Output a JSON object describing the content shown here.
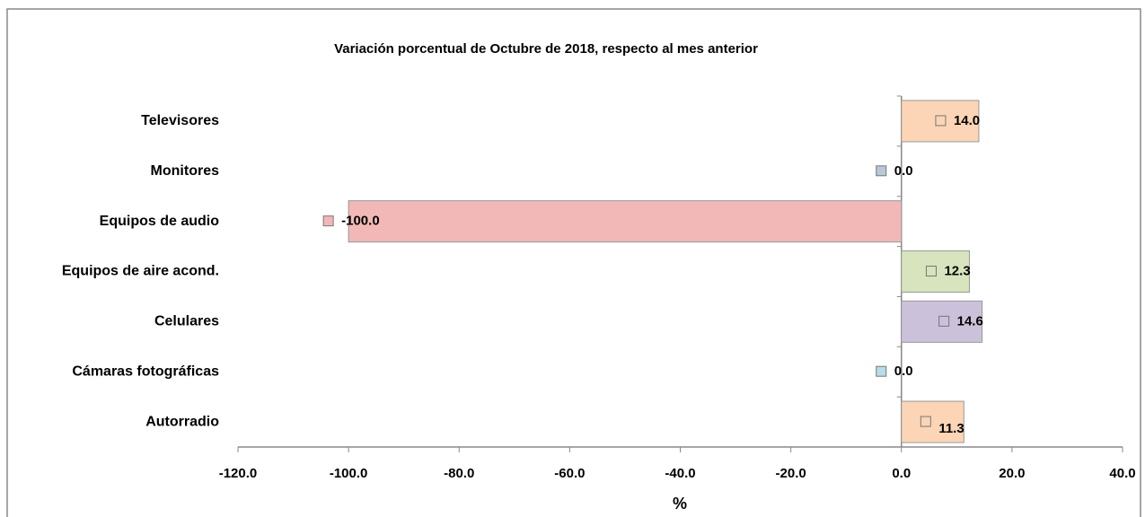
{
  "chart_data": {
    "type": "bar",
    "orientation": "horizontal",
    "title": "Variación porcentual de Octubre de 2018, respecto al mes anterior",
    "x_label": "%",
    "categories": [
      "Televisores",
      "Monitores",
      "Equipos de audio",
      "Equipos de aire acond.",
      "Celulares",
      "Cámaras fotográficas",
      "Autorradio"
    ],
    "values": [
      14.0,
      0.0,
      -100.0,
      12.3,
      14.6,
      0.0,
      11.3
    ],
    "value_labels": [
      "14.0",
      "0.0",
      "-100.0",
      "12.3",
      "14.6",
      "0.0",
      "11.3"
    ],
    "colors": [
      "#fbd5b5",
      "#b9c7d9",
      "#f2b8b8",
      "#d7e4bd",
      "#ccc1da",
      "#b7dde8",
      "#fbd5b5"
    ],
    "xlim": [
      -120,
      40
    ],
    "xticks": [
      {
        "value": -120,
        "label": "-120.0"
      },
      {
        "value": -100,
        "label": "-100.0"
      },
      {
        "value": -80,
        "label": "-80.0"
      },
      {
        "value": -60,
        "label": "-60.0"
      },
      {
        "value": -40,
        "label": "-40.0"
      },
      {
        "value": -20,
        "label": "-20.0"
      },
      {
        "value": 0,
        "label": "0.0"
      },
      {
        "value": 20,
        "label": "20.0"
      },
      {
        "value": 40,
        "label": "40.0"
      }
    ],
    "grid": false
  }
}
